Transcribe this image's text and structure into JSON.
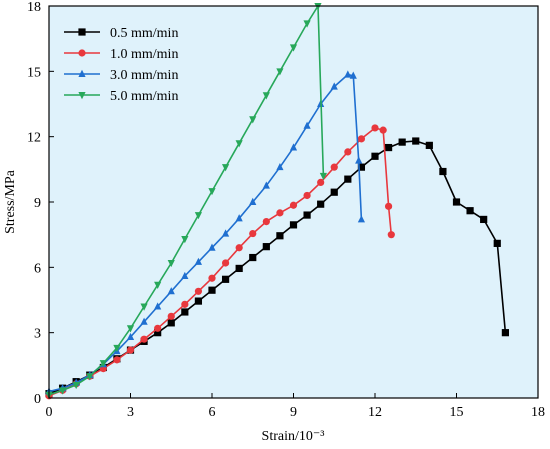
{
  "chart_data": {
    "type": "line",
    "xlabel": "Strain/10⁻³",
    "ylabel": "Stress/MPa",
    "xlim": [
      0,
      18
    ],
    "ylim": [
      0,
      18
    ],
    "xticks": [
      "0",
      "3",
      "6",
      "9",
      "12",
      "15",
      "18"
    ],
    "yticks": [
      "0",
      "3",
      "6",
      "9",
      "12",
      "15",
      "18"
    ],
    "grid": false,
    "legend_position": "top-left",
    "background_color": "#dff2fb",
    "series": [
      {
        "name": "0.5 mm/min",
        "color": "#000000",
        "marker": "square",
        "x": [
          0,
          0.5,
          1,
          1.5,
          2,
          2.5,
          3,
          3.5,
          4,
          4.5,
          5,
          5.5,
          6,
          6.5,
          7,
          7.5,
          8,
          8.5,
          9,
          9.5,
          10,
          10.5,
          11,
          11.5,
          12,
          12.5,
          13,
          13.5,
          14,
          14.5,
          15,
          15.5,
          16,
          16.5,
          16.8
        ],
        "y": [
          0.2,
          0.45,
          0.75,
          1.05,
          1.4,
          1.8,
          2.2,
          2.6,
          3.0,
          3.45,
          3.95,
          4.45,
          4.95,
          5.45,
          5.95,
          6.45,
          6.95,
          7.45,
          7.95,
          8.4,
          8.9,
          9.45,
          10.05,
          10.6,
          11.1,
          11.5,
          11.75,
          11.8,
          11.6,
          10.4,
          9.0,
          8.6,
          8.2,
          7.1,
          3.0
        ]
      },
      {
        "name": "1.0 mm/min",
        "color": "#e8383d",
        "marker": "circle",
        "x": [
          0,
          0.5,
          1,
          1.5,
          2,
          2.5,
          3,
          3.5,
          4,
          4.5,
          5,
          5.5,
          6,
          6.5,
          7,
          7.5,
          8,
          8.5,
          9,
          9.5,
          10,
          10.5,
          11,
          11.5,
          12,
          12.3,
          12.5,
          12.6
        ],
        "y": [
          0.1,
          0.35,
          0.65,
          1.0,
          1.35,
          1.75,
          2.2,
          2.7,
          3.2,
          3.75,
          4.3,
          4.9,
          5.5,
          6.2,
          6.9,
          7.55,
          8.1,
          8.5,
          8.85,
          9.3,
          9.9,
          10.6,
          11.3,
          11.9,
          12.4,
          12.3,
          8.8,
          7.5
        ]
      },
      {
        "name": "3.0 mm/min",
        "color": "#1f6fd0",
        "marker": "triangle-up",
        "x": [
          0,
          0.5,
          1,
          1.5,
          2,
          2.5,
          3,
          3.5,
          4,
          4.5,
          5,
          5.5,
          6,
          6.5,
          7,
          7.5,
          8,
          8.5,
          9,
          9.5,
          10,
          10.5,
          11,
          11.2,
          11.4,
          11.5
        ],
        "y": [
          0.3,
          0.45,
          0.7,
          1.05,
          1.55,
          2.15,
          2.8,
          3.5,
          4.2,
          4.9,
          5.6,
          6.25,
          6.9,
          7.55,
          8.25,
          9.0,
          9.75,
          10.6,
          11.5,
          12.5,
          13.5,
          14.3,
          14.85,
          14.8,
          10.9,
          8.2
        ]
      },
      {
        "name": "5.0 mm/min",
        "color": "#27a85a",
        "marker": "triangle-down",
        "x": [
          0,
          0.5,
          1,
          1.5,
          2,
          2.5,
          3,
          3.5,
          4,
          4.5,
          5,
          5.5,
          6,
          6.5,
          7,
          7.5,
          8,
          8.5,
          9,
          9.5,
          9.9,
          10.1
        ],
        "y": [
          0.15,
          0.35,
          0.6,
          1.0,
          1.6,
          2.3,
          3.2,
          4.2,
          5.2,
          6.2,
          7.3,
          8.4,
          9.5,
          10.6,
          11.7,
          12.8,
          13.9,
          15.0,
          16.1,
          17.2,
          18.0,
          10.2
        ]
      }
    ]
  }
}
